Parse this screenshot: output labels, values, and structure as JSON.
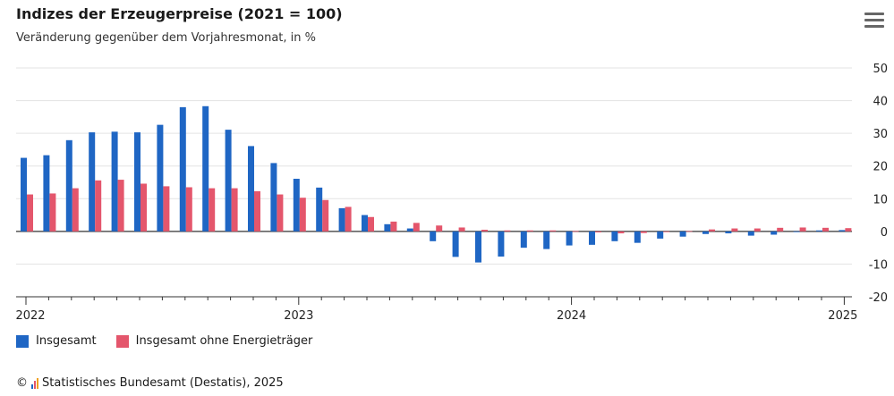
{
  "header": {
    "title": "Indizes der Erzeugerpreise (2021 = 100)",
    "subtitle": "Veränderung gegenüber dem Vorjahresmonat, in %",
    "menu_icon": "hamburger-menu-icon"
  },
  "chart_data": {
    "type": "bar",
    "title": "Indizes der Erzeugerpreise (2021 = 100)",
    "subtitle": "Veränderung gegenüber dem Vorjahresmonat, in %",
    "x_tick_labels": [
      "2022",
      "2023",
      "2024",
      "2025"
    ],
    "y_ticks": [
      50,
      40,
      30,
      20,
      10,
      0,
      -10,
      -20
    ],
    "ylim": [
      -20,
      50
    ],
    "grid": true,
    "y_axis_position": "right",
    "legend_position": "bottom-left",
    "categories": [
      "2022-01",
      "2022-02",
      "2022-03",
      "2022-04",
      "2022-05",
      "2022-06",
      "2022-07",
      "2022-08",
      "2022-09",
      "2022-10",
      "2022-11",
      "2022-12",
      "2023-01",
      "2023-02",
      "2023-03",
      "2023-04",
      "2023-05",
      "2023-06",
      "2023-07",
      "2023-08",
      "2023-09",
      "2023-10",
      "2023-11",
      "2023-12",
      "2024-01",
      "2024-02",
      "2024-03",
      "2024-04",
      "2024-05",
      "2024-06",
      "2024-07",
      "2024-08",
      "2024-09",
      "2024-10",
      "2024-11",
      "2024-12",
      "2025-01"
    ],
    "series": [
      {
        "name": "Insgesamt",
        "color": "#1f66c4",
        "values": [
          22.5,
          23.3,
          27.9,
          30.3,
          30.5,
          30.3,
          32.6,
          38.0,
          38.3,
          31.1,
          26.1,
          20.9,
          16.1,
          13.4,
          7.1,
          5.0,
          2.2,
          0.9,
          -3.0,
          -7.8,
          -9.5,
          -7.7,
          -5.0,
          -5.4,
          -4.3,
          -4.1,
          -3.0,
          -3.5,
          -2.2,
          -1.6,
          -0.8,
          -0.6,
          -1.3,
          -1.0,
          -0.2,
          0.3,
          0.4
        ]
      },
      {
        "name": "Insgesamt ohne Energieträger",
        "color": "#e4566c",
        "values": [
          11.3,
          11.6,
          13.2,
          15.6,
          15.8,
          14.6,
          13.8,
          13.5,
          13.2,
          13.2,
          12.3,
          11.3,
          10.3,
          9.6,
          7.5,
          4.4,
          3.0,
          2.6,
          1.8,
          1.2,
          0.5,
          0.3,
          0.3,
          0.3,
          0.1,
          -0.3,
          -0.6,
          -0.5,
          0.0,
          0.1,
          0.6,
          0.9,
          0.9,
          1.1,
          1.2,
          1.1,
          1.0
        ]
      }
    ]
  },
  "legend": {
    "items": [
      {
        "label": "Insgesamt",
        "color": "#1f66c4"
      },
      {
        "label": "Insgesamt ohne Energieträger",
        "color": "#e4566c"
      }
    ]
  },
  "footer": {
    "text": "Statistisches Bundesamt (Destatis), 2025",
    "copyright": "©",
    "logo_icon": "destatis-logo-icon"
  }
}
